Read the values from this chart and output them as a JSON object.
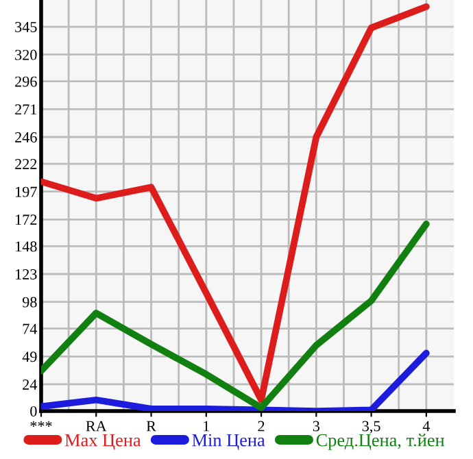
{
  "chart_data": {
    "type": "line",
    "categories": [
      "***",
      "RA",
      "R",
      "1",
      "2",
      "3",
      "3,5",
      "4"
    ],
    "series": [
      {
        "name": "Max Цена",
        "color": "#dd1c1c",
        "values": [
          206,
          191,
          201,
          106,
          10,
          246,
          344,
          363
        ]
      },
      {
        "name": "Min Цена",
        "color": "#1c1cdd",
        "values": [
          4,
          10,
          2,
          2,
          1,
          0,
          1,
          52
        ]
      },
      {
        "name": "Сред.Цена, т.йен",
        "color": "#118011",
        "values": [
          36,
          88,
          60,
          33,
          3,
          59,
          99,
          168
        ]
      }
    ],
    "ylim": [
      0,
      369
    ],
    "yticks": [
      0,
      24,
      49,
      74,
      98,
      123,
      148,
      172,
      197,
      222,
      246,
      271,
      296,
      320,
      345
    ],
    "grid": true,
    "legend": "bottom",
    "marker": "none",
    "line_style": "solid"
  }
}
